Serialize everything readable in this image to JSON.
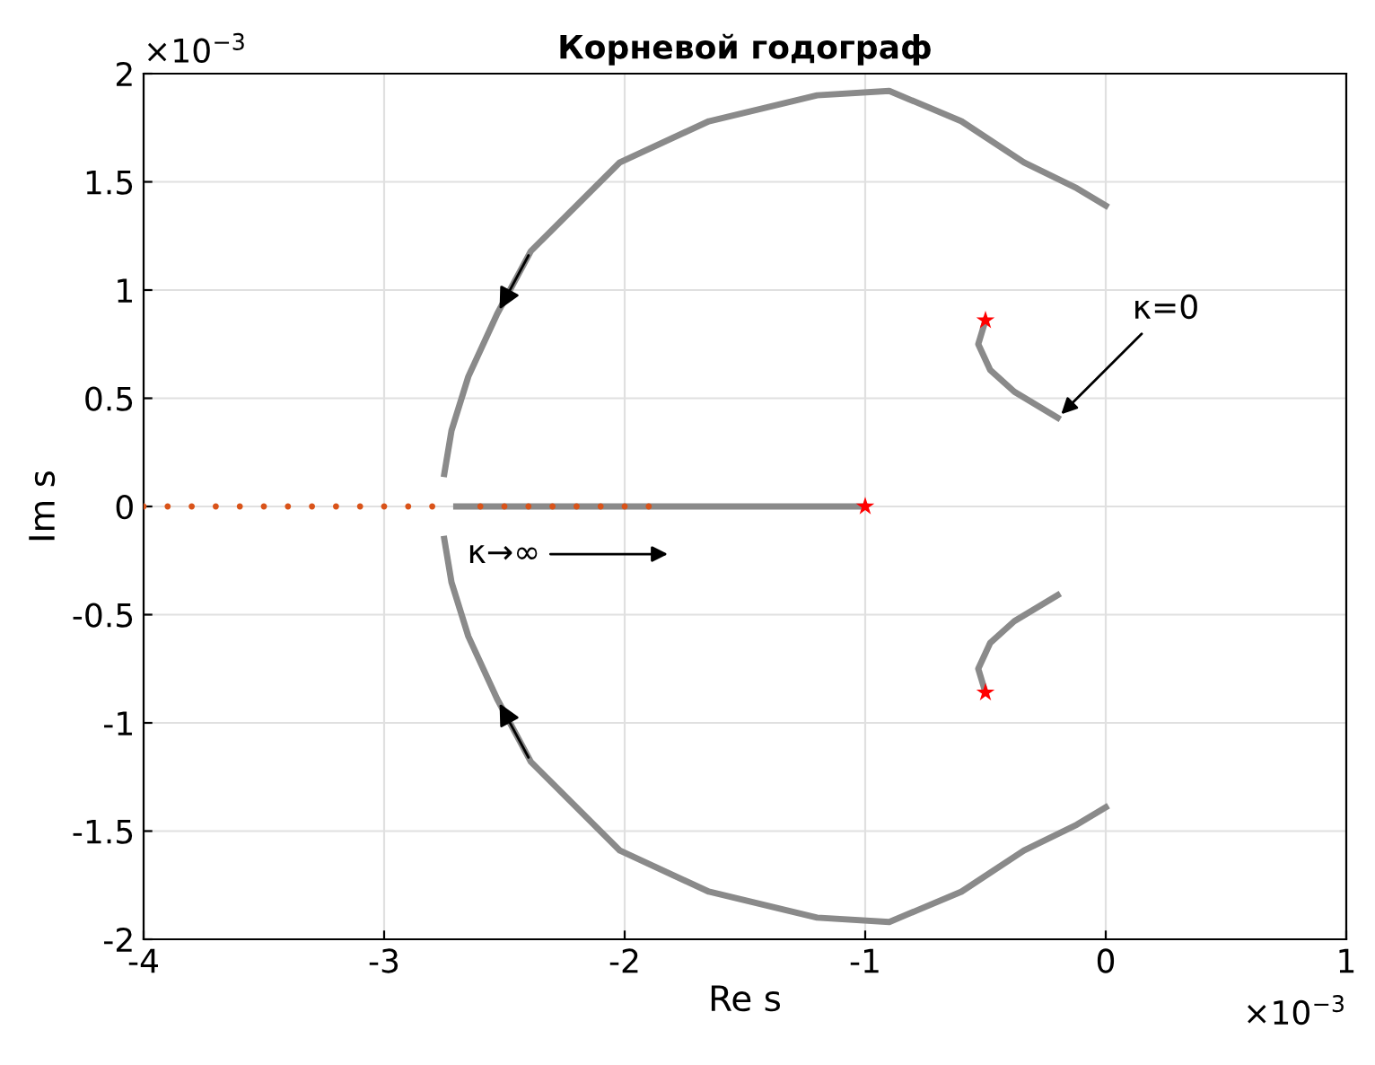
{
  "chart_data": {
    "type": "scatter",
    "title": "Корневой годограф",
    "xlabel": "Re s",
    "ylabel": "Im s",
    "xlim": [
      -4,
      1
    ],
    "ylim": [
      -2,
      2
    ],
    "xticks": [
      -4,
      -3,
      -2,
      -1,
      0,
      1
    ],
    "yticks": [
      -2,
      -1.5,
      -1,
      -0.5,
      0,
      0.5,
      1,
      1.5,
      2
    ],
    "grid": true,
    "series": [
      {
        "type": "line",
        "color": "#8a8a8a",
        "x": [
          0.0,
          -0.12,
          -0.34,
          -0.6,
          -0.9,
          -1.2,
          -1.65,
          -2.02,
          -2.39,
          -2.53,
          -2.65,
          -2.72,
          -2.75
        ],
        "values": [
          1.39,
          1.47,
          1.59,
          1.78,
          1.92,
          1.9,
          1.78,
          1.59,
          1.18,
          0.89,
          0.6,
          0.35,
          0.15
        ]
      },
      {
        "type": "line",
        "color": "#8a8a8a",
        "x": [
          0.0,
          -0.12,
          -0.34,
          -0.6,
          -0.9,
          -1.2,
          -1.65,
          -2.02,
          -2.39,
          -2.53,
          -2.65,
          -2.72,
          -2.75
        ],
        "values": [
          -1.39,
          -1.47,
          -1.59,
          -1.78,
          -1.92,
          -1.9,
          -1.78,
          -1.59,
          -1.18,
          -0.89,
          -0.6,
          -0.35,
          -0.15
        ]
      },
      {
        "type": "line",
        "color": "#8a8a8a",
        "x": [
          -0.5,
          -0.53,
          -0.48,
          -0.38,
          -0.2
        ],
        "values": [
          0.86,
          0.75,
          0.63,
          0.53,
          0.41
        ]
      },
      {
        "type": "line",
        "color": "#8a8a8a",
        "x": [
          -0.5,
          -0.53,
          -0.48,
          -0.38,
          -0.2
        ],
        "values": [
          -0.86,
          -0.75,
          -0.63,
          -0.53,
          -0.41
        ]
      },
      {
        "type": "line",
        "color": "#8a8a8a",
        "x": [
          -2.7,
          -1.0
        ],
        "values": [
          0,
          0
        ]
      },
      {
        "color": "#d95319",
        "marker": "circle",
        "x": [
          -4.0,
          -3.9,
          -3.8,
          -3.7,
          -3.6,
          -3.5,
          -3.4,
          -3.3,
          -3.2,
          -3.1,
          -3.0,
          -2.9,
          -2.8,
          -2.6,
          -2.5,
          -2.4,
          -2.3,
          -2.2,
          -2.1,
          -2.0,
          -1.9
        ],
        "values": [
          0,
          0,
          0,
          0,
          0,
          0,
          0,
          0,
          0,
          0,
          0,
          0,
          0,
          0,
          0,
          0,
          0,
          0,
          0,
          0,
          0
        ]
      },
      {
        "color": "#ff0000",
        "marker": "star",
        "x": [
          -0.5,
          -0.5,
          -1.0
        ],
        "values": [
          0.86,
          -0.86,
          0
        ]
      }
    ],
    "annotations": [
      {
        "text": "κ=0",
        "x": -0.2,
        "y": 0.41
      },
      "κ→∞",
      "×10$^{−3}$",
      "×10$^{−3}$"
    ]
  }
}
